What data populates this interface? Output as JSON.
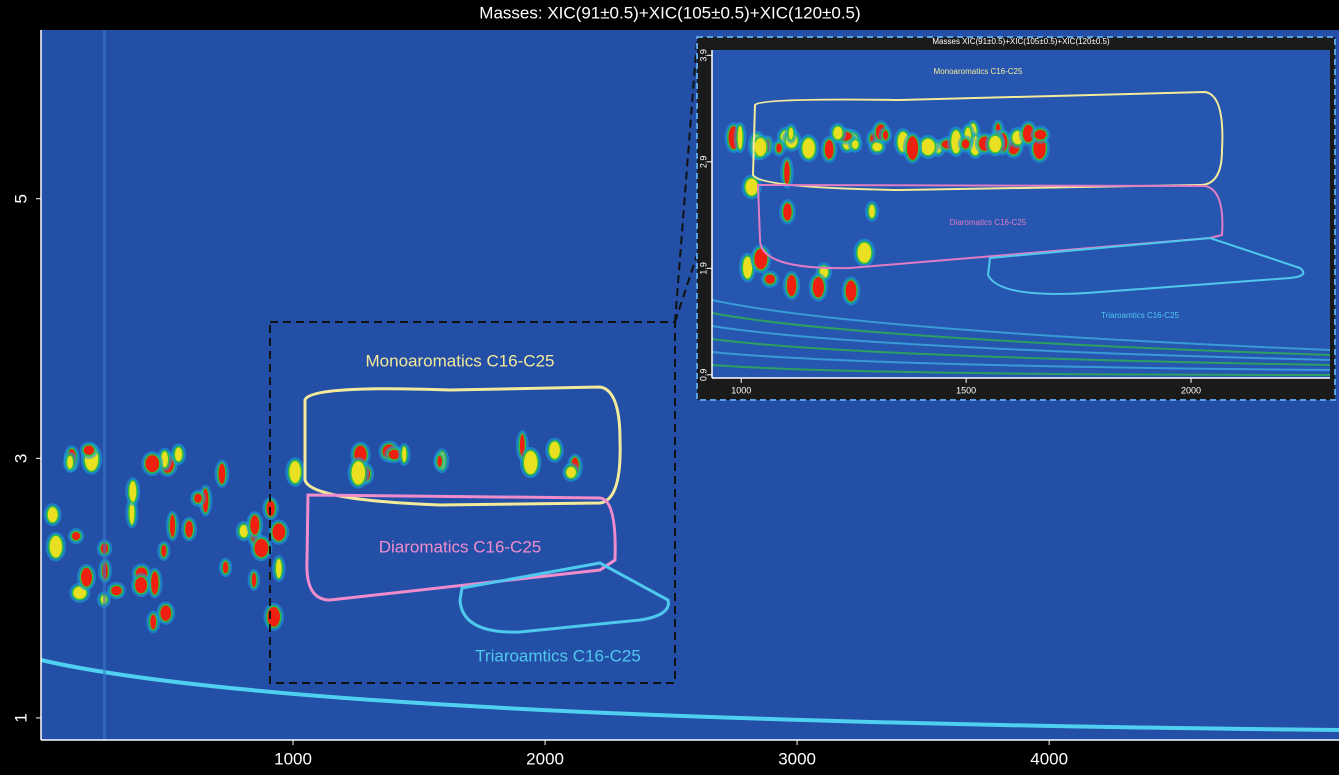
{
  "chart_data": [
    {
      "type": "contour",
      "title": "Masses:  XIC(91±0.5)+XIC(105±0.5)+XIC(120±0.5)",
      "xlim": [
        0,
        5150
      ],
      "ylim": [
        0.83,
        6.3
      ],
      "xticks": [
        1000,
        2000,
        3000,
        4000
      ],
      "yticks": [
        1,
        3,
        5
      ],
      "background": "#234fa6",
      "annotations": [
        {
          "text": "Monoaromatics C16-C25",
          "color": "#f3ea9a"
        },
        {
          "text": "Diaromatics C16-C25",
          "color": "#f08ccc"
        },
        {
          "text": "Triaroamtics C16-C25",
          "color": "#4fc8ee"
        }
      ]
    },
    {
      "type": "contour",
      "title": "Masses  XIC(91±0.5)+XIC(105±0.5)+XIC(120±0.5)",
      "xlim": [
        935,
        2309
      ],
      "ylim": [
        0.87,
        3.95
      ],
      "xticks": [
        1000,
        1500,
        2000
      ],
      "yticks": [
        0.9,
        1.9,
        2.9,
        3.9
      ],
      "background": "#2656b0",
      "annotations": [
        {
          "text": "Monoaromatics C16-C25",
          "color": "#f3ea9a"
        },
        {
          "text": "Diaromatics C16-C25",
          "color": "#e07cc4"
        },
        {
          "text": "Triaroamtics C16-C25",
          "color": "#4fc8ee"
        }
      ]
    }
  ]
}
